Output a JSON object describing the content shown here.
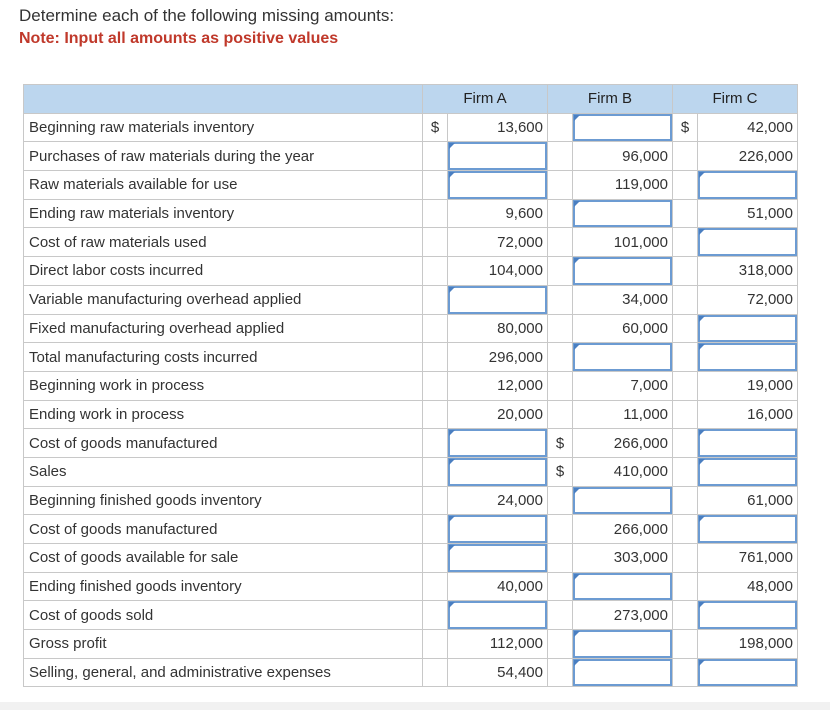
{
  "instructions": {
    "title": "Determine each of the following missing amounts:",
    "note": "Note: Input all amounts as positive values"
  },
  "columns": [
    "Firm A",
    "Firm B",
    "Firm C"
  ],
  "rows": [
    {
      "label": "Beginning raw materials inventory",
      "a_sym": "$",
      "a": "13,600",
      "b_sym": "",
      "b": null,
      "c_sym": "$",
      "c": "42,000"
    },
    {
      "label": "Purchases of raw materials during the year",
      "a_sym": "",
      "a": null,
      "b_sym": "",
      "b": "96,000",
      "c_sym": "",
      "c": "226,000"
    },
    {
      "label": "Raw materials available for use",
      "a_sym": "",
      "a": null,
      "b_sym": "",
      "b": "119,000",
      "c_sym": "",
      "c": null
    },
    {
      "label": "Ending raw materials inventory",
      "a_sym": "",
      "a": "9,600",
      "b_sym": "",
      "b": null,
      "c_sym": "",
      "c": "51,000"
    },
    {
      "label": "Cost of raw materials used",
      "a_sym": "",
      "a": "72,000",
      "b_sym": "",
      "b": "101,000",
      "c_sym": "",
      "c": null
    },
    {
      "label": "Direct labor costs incurred",
      "a_sym": "",
      "a": "104,000",
      "b_sym": "",
      "b": null,
      "c_sym": "",
      "c": "318,000"
    },
    {
      "label": "Variable manufacturing overhead applied",
      "a_sym": "",
      "a": null,
      "b_sym": "",
      "b": "34,000",
      "c_sym": "",
      "c": "72,000"
    },
    {
      "label": "Fixed manufacturing overhead applied",
      "a_sym": "",
      "a": "80,000",
      "b_sym": "",
      "b": "60,000",
      "c_sym": "",
      "c": null
    },
    {
      "label": "Total manufacturing costs incurred",
      "a_sym": "",
      "a": "296,000",
      "b_sym": "",
      "b": null,
      "c_sym": "",
      "c": null
    },
    {
      "label": "Beginning work in process",
      "a_sym": "",
      "a": "12,000",
      "b_sym": "",
      "b": "7,000",
      "c_sym": "",
      "c": "19,000"
    },
    {
      "label": "Ending work in process",
      "a_sym": "",
      "a": "20,000",
      "b_sym": "",
      "b": "11,000",
      "c_sym": "",
      "c": "16,000"
    },
    {
      "label": "Cost of goods manufactured",
      "a_sym": "",
      "a": null,
      "b_sym": "$",
      "b": "266,000",
      "c_sym": "",
      "c": null
    },
    {
      "label": "Sales",
      "a_sym": "",
      "a": null,
      "b_sym": "$",
      "b": "410,000",
      "c_sym": "",
      "c": null
    },
    {
      "label": "Beginning finished goods inventory",
      "a_sym": "",
      "a": "24,000",
      "b_sym": "",
      "b": null,
      "c_sym": "",
      "c": "61,000"
    },
    {
      "label": "Cost of goods manufactured",
      "a_sym": "",
      "a": null,
      "b_sym": "",
      "b": "266,000",
      "c_sym": "",
      "c": null
    },
    {
      "label": "Cost of goods available for sale",
      "a_sym": "",
      "a": null,
      "b_sym": "",
      "b": "303,000",
      "c_sym": "",
      "c": "761,000"
    },
    {
      "label": "Ending finished goods inventory",
      "a_sym": "",
      "a": "40,000",
      "b_sym": "",
      "b": null,
      "c_sym": "",
      "c": "48,000"
    },
    {
      "label": "Cost of goods sold",
      "a_sym": "",
      "a": null,
      "b_sym": "",
      "b": "273,000",
      "c_sym": "",
      "c": null
    },
    {
      "label": "Gross profit",
      "a_sym": "",
      "a": "112,000",
      "b_sym": "",
      "b": null,
      "c_sym": "",
      "c": "198,000"
    },
    {
      "label": "Selling, general, and administrative expenses",
      "a_sym": "",
      "a": "54,400",
      "b_sym": "",
      "b": null,
      "c_sym": "",
      "c": null
    }
  ]
}
